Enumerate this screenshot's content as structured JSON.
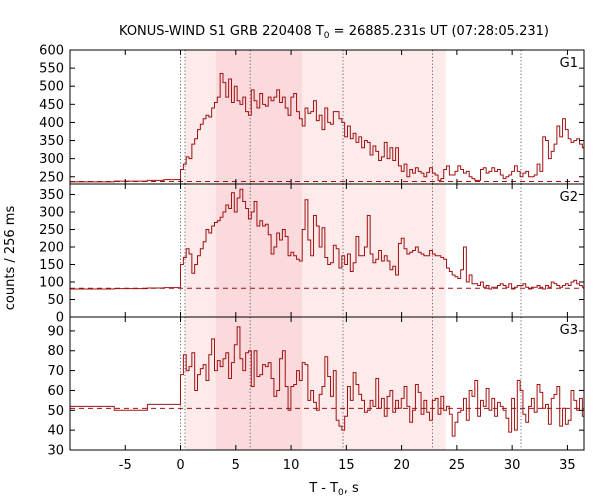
{
  "chart_data": {
    "type": "line",
    "title": "KONUS-WIND S1 GRB 220408 T",
    "title_sub": "0",
    "title_rest": " = 26885.231s UT (07:28:05.231)",
    "xlabel": "T - T",
    "xlabel_sub": "0",
    "xlabel_rest": ", s",
    "ylabel": "counts / 256 ms",
    "xlim": [
      -10,
      36.5
    ],
    "xticks": [
      -5,
      0,
      5,
      10,
      15,
      20,
      25,
      30,
      35
    ],
    "vlines": [
      0.0,
      0.4,
      6.3,
      14.7,
      22.8,
      30.8
    ],
    "shaded_regions": [
      {
        "from": 0.4,
        "to": 24.0,
        "color": "#fdeaea"
      },
      {
        "from": 3.2,
        "to": 11.0,
        "color": "#fbdadd"
      }
    ],
    "line_color": "#a01010",
    "panels": [
      {
        "label": "G1",
        "ylim": [
          230,
          600
        ],
        "yticks": [
          250,
          300,
          350,
          400,
          450,
          500,
          550,
          600
        ],
        "background": 237,
        "pre_steps": [
          [
            -10,
            236
          ],
          [
            -6,
            238
          ],
          [
            -3,
            240
          ],
          [
            -1.5,
            242
          ]
        ],
        "x0": 0.0,
        "dt": 0.256,
        "values": [
          270,
          285,
          305,
          300,
          340,
          355,
          380,
          395,
          410,
          420,
          415,
          440,
          455,
          470,
          535,
          510,
          470,
          520,
          455,
          500,
          460,
          450,
          470,
          430,
          420,
          490,
          460,
          440,
          480,
          450,
          445,
          470,
          460,
          470,
          490,
          455,
          470,
          440,
          420,
          470,
          480,
          430,
          410,
          390,
          440,
          425,
          430,
          460,
          405,
          420,
          380,
          440,
          400,
          395,
          430,
          430,
          410,
          400,
          360,
          390,
          355,
          370,
          345,
          360,
          330,
          350,
          345,
          310,
          335,
          320,
          295,
          305,
          345,
          300,
          330,
          295,
          330,
          280,
          265,
          285,
          250,
          270,
          260,
          275,
          265,
          260,
          250,
          262,
          275,
          260,
          255,
          240,
          245,
          270,
          280,
          255,
          255,
          265,
          280,
          270,
          260,
          265,
          250,
          245,
          240,
          240,
          270,
          275,
          260,
          265,
          275,
          265,
          270,
          255,
          245,
          250,
          255,
          265,
          280,
          265,
          250,
          260,
          265,
          250,
          250,
          255,
          285,
          265,
          360,
          350,
          300,
          320,
          340,
          390,
          360,
          410,
          380,
          355,
          345,
          350,
          355,
          340,
          330,
          315,
          290,
          280,
          305,
          290,
          280,
          275,
          280,
          270,
          310,
          280,
          300,
          265,
          250,
          260,
          255,
          290,
          285,
          300,
          310,
          275,
          280,
          270,
          260,
          275,
          290,
          320,
          300,
          290,
          320,
          265,
          275,
          275,
          260,
          270,
          270,
          265,
          260,
          255,
          275,
          285,
          260,
          250,
          265,
          300,
          325,
          265,
          280,
          255,
          265,
          260,
          280,
          250,
          245,
          265,
          265,
          260,
          255,
          250,
          260,
          255,
          260,
          265,
          250,
          245,
          240
        ]
      },
      {
        "label": "G2",
        "ylim": [
          0,
          380
        ],
        "yticks": [
          0,
          50,
          100,
          150,
          200,
          250,
          300,
          350
        ],
        "background": 82,
        "pre_steps": [
          [
            -10,
            80
          ],
          [
            -6,
            81
          ],
          [
            -3,
            83
          ],
          [
            -1.5,
            84
          ]
        ],
        "x0": 0.0,
        "dt": 0.256,
        "values": [
          150,
          170,
          195,
          180,
          125,
          150,
          175,
          195,
          215,
          250,
          240,
          260,
          270,
          275,
          285,
          300,
          320,
          310,
          355,
          300,
          340,
          365,
          330,
          310,
          280,
          300,
          330,
          260,
          275,
          260,
          265,
          235,
          180,
          200,
          240,
          220,
          250,
          230,
          175,
          185,
          175,
          165,
          160,
          250,
          335,
          220,
          175,
          290,
          260,
          200,
          255,
          170,
          150,
          155,
          205,
          195,
          140,
          175,
          150,
          180,
          130,
          155,
          230,
          175,
          175,
          200,
          290,
          180,
          155,
          165,
          190,
          160,
          175,
          160,
          135,
          145,
          120,
          210,
          225,
          195,
          180,
          185,
          190,
          200,
          185,
          180,
          175,
          175,
          190,
          180,
          175,
          175,
          170,
          165,
          140,
          130,
          120,
          115,
          110,
          135,
          200,
          100,
          120,
          95,
          95,
          90,
          100,
          85,
          90,
          80,
          85,
          85,
          90,
          95,
          90,
          85,
          95,
          80,
          85,
          90,
          90,
          95,
          85,
          80,
          85,
          85,
          90,
          85,
          80,
          90,
          85,
          100,
          95,
          90,
          85,
          90,
          95,
          90,
          100,
          105,
          95,
          90,
          85,
          90,
          100,
          95,
          90,
          85,
          95,
          100,
          130,
          120,
          150,
          145,
          185,
          160,
          140,
          130,
          100,
          95,
          95,
          115,
          110,
          100,
          105,
          95,
          90,
          85,
          100,
          95,
          110,
          90,
          85,
          95,
          100,
          90,
          95,
          95,
          90,
          85,
          100,
          95,
          90,
          85,
          80,
          95,
          90,
          100,
          95,
          85,
          95,
          90,
          95,
          100,
          85,
          95,
          85,
          80,
          90,
          85,
          100,
          95,
          90,
          85,
          95,
          100,
          110,
          95,
          85,
          90,
          95,
          100,
          90,
          85,
          75,
          85,
          80,
          95,
          90,
          100,
          85,
          90,
          95,
          85,
          80,
          95,
          100,
          90,
          85
        ]
      },
      {
        "label": "G3",
        "ylim": [
          30,
          97
        ],
        "yticks": [
          30,
          40,
          50,
          60,
          70,
          80,
          90
        ],
        "background": 51,
        "pre_steps": [
          [
            -10,
            52
          ],
          [
            -6,
            50
          ],
          [
            -3,
            53
          ],
          [
            -1.5,
            53
          ]
        ],
        "x0": 0.0,
        "dt": 0.256,
        "values": [
          68,
          78,
          70,
          72,
          79,
          60,
          68,
          71,
          73,
          65,
          78,
          86,
          70,
          75,
          72,
          76,
          79,
          66,
          74,
          83,
          92,
          76,
          70,
          79,
          80,
          62,
          80,
          67,
          68,
          73,
          72,
          74,
          66,
          57,
          60,
          76,
          80,
          62,
          50,
          62,
          63,
          70,
          65,
          74,
          73,
          55,
          60,
          54,
          50,
          58,
          62,
          77,
          67,
          57,
          70,
          45,
          42,
          40,
          47,
          62,
          55,
          69,
          63,
          58,
          55,
          49,
          50,
          55,
          52,
          66,
          51,
          56,
          47,
          57,
          60,
          49,
          55,
          51,
          56,
          62,
          52,
          44,
          50,
          63,
          59,
          48,
          55,
          49,
          45,
          55,
          56,
          48,
          57,
          50,
          52,
          48,
          37,
          44,
          49,
          50,
          56,
          45,
          60,
          57,
          65,
          47,
          55,
          52,
          61,
          50,
          56,
          47,
          54,
          52,
          50,
          46,
          39,
          56,
          40,
          65,
          60,
          48,
          44,
          52,
          56,
          49,
          63,
          59,
          51,
          53,
          43,
          56,
          58,
          62,
          42,
          51,
          43,
          45,
          60,
          55,
          50,
          56,
          47,
          52,
          53,
          44,
          56,
          45,
          52,
          51,
          65,
          62,
          55,
          46,
          48,
          44,
          57,
          50,
          52,
          56,
          48,
          55,
          47,
          53,
          41,
          45,
          57,
          56,
          60,
          65,
          49,
          55,
          52,
          50,
          44,
          55,
          53,
          47,
          51,
          58,
          46,
          50,
          44,
          56,
          52,
          49,
          54,
          48,
          43,
          49,
          61,
          55,
          52,
          48,
          45,
          50,
          60,
          55,
          43,
          53,
          49,
          50,
          52,
          47,
          55,
          56,
          46,
          55,
          52,
          51,
          50,
          44,
          50,
          47,
          53,
          56,
          51,
          49,
          52
        ]
      }
    ]
  }
}
